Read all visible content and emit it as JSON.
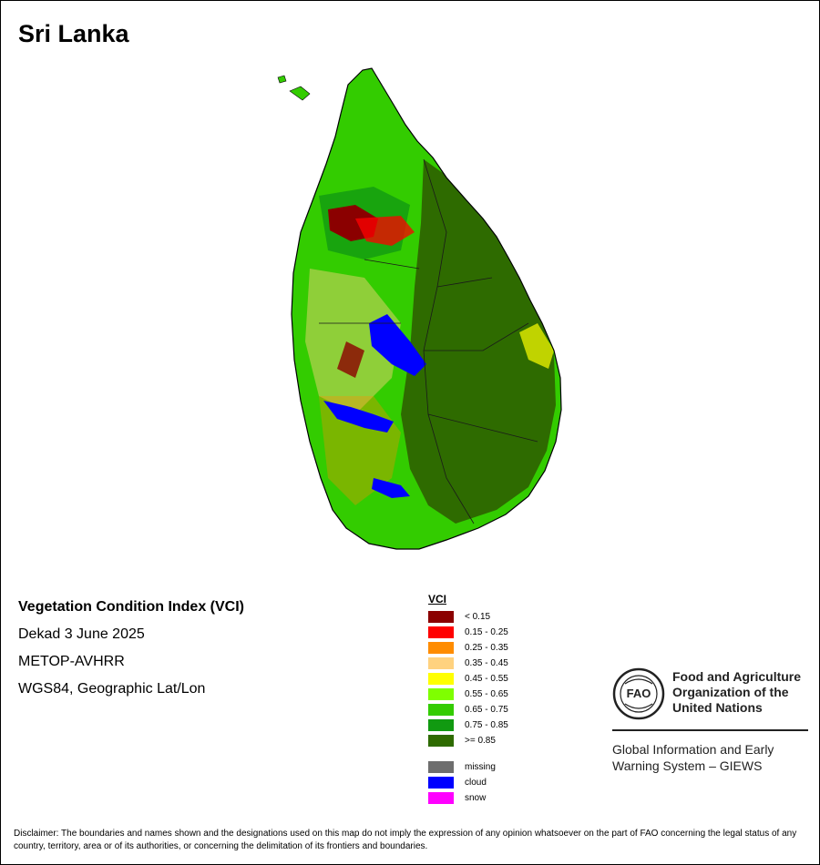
{
  "country": "Sri Lanka",
  "map_title": "Vegetation Condition Index (VCI)",
  "period": "Dekad 3 June 2025",
  "sensor": "METOP-AVHRR",
  "projection": "WGS84, Geographic Lat/Lon",
  "legend": {
    "title": "VCI",
    "classes": [
      {
        "label": "< 0.15",
        "color": "#8b0000"
      },
      {
        "label": "0.15 - 0.25",
        "color": "#ff0000"
      },
      {
        "label": "0.25 - 0.35",
        "color": "#ff8c00"
      },
      {
        "label": "0.35 - 0.45",
        "color": "#ffd27f"
      },
      {
        "label": "0.45 - 0.55",
        "color": "#ffff00"
      },
      {
        "label": "0.55 - 0.65",
        "color": "#7fff00"
      },
      {
        "label": "0.65 - 0.75",
        "color": "#33cc00"
      },
      {
        "label": "0.75 - 0.85",
        "color": "#119a11"
      },
      {
        "label": ">= 0.85",
        "color": "#2e6b00"
      }
    ],
    "special": [
      {
        "label": "missing",
        "color": "#6e6e6e"
      },
      {
        "label": "cloud",
        "color": "#0000ff"
      },
      {
        "label": "snow",
        "color": "#ff00ff"
      }
    ]
  },
  "organization": {
    "name_lines": [
      "Food and Agriculture",
      "Organization of the",
      "United Nations"
    ],
    "logo_text": "FAO",
    "system_lines": [
      "Global Information and Early",
      "Warning System – GIEWS"
    ]
  },
  "disclaimer": "Disclaimer: The boundaries and names shown and the designations used on this map do not imply the expression of any opinion whatsoever on the part of FAO concerning the legal status of any country, territory, area or of its authorities, or concerning the delimitation of its frontiers and boundaries."
}
